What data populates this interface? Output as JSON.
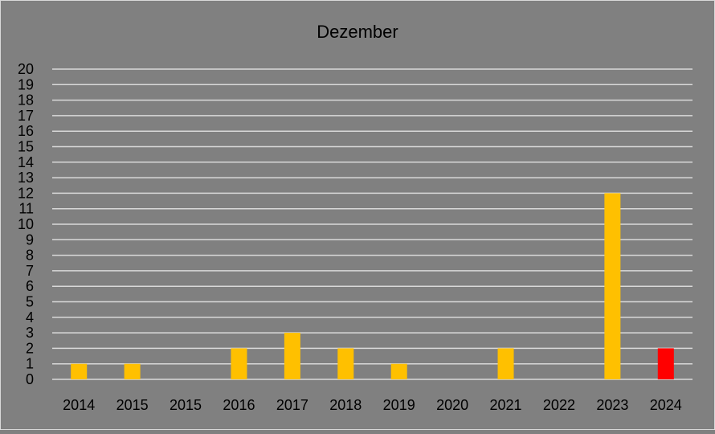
{
  "chart_data": {
    "type": "bar",
    "title": "Dezember",
    "xlabel": "",
    "ylabel": "",
    "categories": [
      "2014",
      "2015",
      "2015",
      "2016",
      "2017",
      "2018",
      "2019",
      "2020",
      "2021",
      "2022",
      "2023",
      "2024"
    ],
    "values": [
      1,
      1,
      0,
      2,
      3,
      2,
      1,
      0,
      2,
      0,
      12,
      2
    ],
    "ylim": [
      0,
      20
    ],
    "yticks": [
      "0",
      "1",
      "2",
      "3",
      "4",
      "5",
      "6",
      "7",
      "8",
      "9",
      "10",
      "11",
      "12",
      "13",
      "14",
      "15",
      "16",
      "17",
      "18",
      "19",
      "20"
    ],
    "grid": true,
    "legend": "none",
    "colors": {
      "background": "#808080",
      "bar": "#FFC000",
      "highlight_bar": "#FF0000",
      "gridline": "#D9D9D9",
      "border": "#D9D9D9"
    },
    "highlight_index": 11
  }
}
